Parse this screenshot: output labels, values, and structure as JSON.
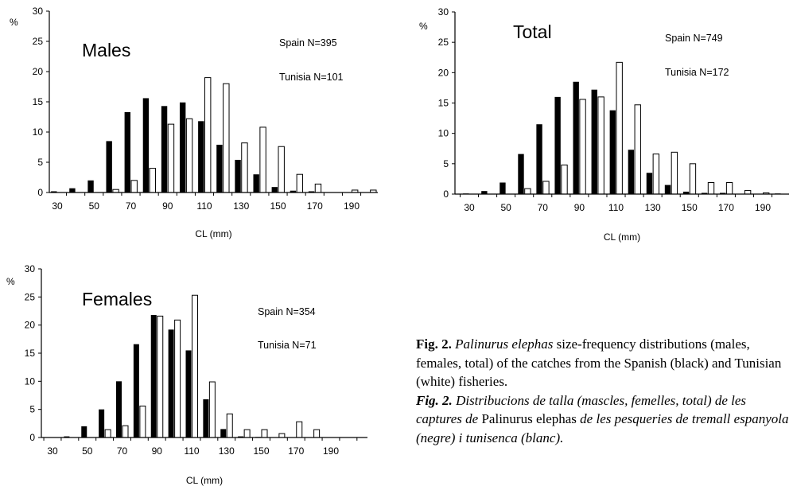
{
  "chart_data": [
    {
      "type": "bar",
      "title": "Males",
      "ylabel": "%",
      "xlabel": "CL (mm)",
      "ylim": [
        0,
        30
      ],
      "yticks": [
        0,
        5,
        10,
        15,
        20,
        25,
        30
      ],
      "xticks": [
        30,
        50,
        70,
        90,
        110,
        130,
        150,
        170,
        190
      ],
      "notes": [
        "Spain N=395",
        "Tunisia N=101"
      ],
      "categories": [
        30,
        40,
        50,
        60,
        70,
        80,
        90,
        100,
        110,
        120,
        130,
        140,
        150,
        160,
        170,
        180,
        190,
        200
      ],
      "series": [
        {
          "name": "Spain",
          "color": "#000000",
          "values": [
            0.2,
            0.7,
            2.0,
            8.5,
            13.3,
            15.6,
            14.3,
            14.9,
            11.8,
            7.9,
            5.4,
            3.0,
            0.9,
            0.3,
            0.2,
            0,
            0,
            0
          ]
        },
        {
          "name": "Tunisia",
          "color": "#ffffff",
          "values": [
            0,
            0,
            0,
            0.5,
            2.0,
            4.0,
            11.3,
            12.2,
            19.0,
            18.0,
            8.2,
            10.8,
            7.6,
            3.0,
            1.4,
            0,
            0.4,
            0.4
          ]
        }
      ]
    },
    {
      "type": "bar",
      "title": "Total",
      "ylabel": "%",
      "xlabel": "CL (mm)",
      "ylim": [
        0,
        30
      ],
      "yticks": [
        0,
        5,
        10,
        15,
        20,
        25,
        30
      ],
      "xticks": [
        30,
        50,
        70,
        90,
        110,
        130,
        150,
        170,
        190
      ],
      "notes": [
        "Spain N=749",
        "Tunisia N=172"
      ],
      "categories": [
        30,
        40,
        50,
        60,
        70,
        80,
        90,
        100,
        110,
        120,
        130,
        140,
        150,
        160,
        170,
        180,
        190,
        200
      ],
      "series": [
        {
          "name": "Spain",
          "color": "#000000",
          "values": [
            0.1,
            0.5,
            1.9,
            6.6,
            11.5,
            16.0,
            18.5,
            17.2,
            13.8,
            7.3,
            3.5,
            1.5,
            0.4,
            0.2,
            0.2,
            0,
            0,
            0.1
          ]
        },
        {
          "name": "Tunisia",
          "color": "#ffffff",
          "values": [
            0,
            0,
            0,
            0.9,
            2.1,
            4.8,
            15.6,
            16.0,
            21.7,
            14.7,
            6.6,
            6.9,
            5.0,
            1.9,
            1.9,
            0.6,
            0.2,
            0
          ]
        }
      ]
    },
    {
      "type": "bar",
      "title": "Females",
      "ylabel": "%",
      "xlabel": "CL (mm)",
      "ylim": [
        0,
        30
      ],
      "yticks": [
        0,
        5,
        10,
        15,
        20,
        25,
        30
      ],
      "xticks": [
        30,
        50,
        70,
        90,
        110,
        130,
        150,
        170,
        190
      ],
      "notes": [
        "Spain N=354",
        "Tunisia N=71"
      ],
      "categories": [
        30,
        40,
        50,
        60,
        70,
        80,
        90,
        100,
        110,
        120,
        130,
        140,
        150,
        160,
        170,
        180
      ],
      "series": [
        {
          "name": "Spain",
          "color": "#000000",
          "values": [
            0,
            0.2,
            2.0,
            5.0,
            10.0,
            16.6,
            21.8,
            19.2,
            15.5,
            6.8,
            1.5,
            0.2,
            0.1,
            0,
            0,
            0
          ]
        },
        {
          "name": "Tunisia",
          "color": "#ffffff",
          "values": [
            0,
            0,
            0,
            1.4,
            2.1,
            5.6,
            21.6,
            20.9,
            25.3,
            9.9,
            4.2,
            1.4,
            1.4,
            0.7,
            2.8,
            1.4
          ]
        }
      ]
    }
  ],
  "caption": {
    "en_label": "Fig. 2.",
    "en_species": "Palinurus elephas",
    "en_text": " size-frequency distributions (males, females, total) of the catches from the Spanish (black) and Tunisian (white) fisheries.",
    "ca_label": "Fig. 2.",
    "ca_text_1": " Distribucions de talla (mascles, femelles, total) de les captures de ",
    "ca_species": "Palinurus elephas",
    "ca_text_2": " de les pesqueries de tremall espanyola (negre) i tunisenca (blanc)."
  }
}
